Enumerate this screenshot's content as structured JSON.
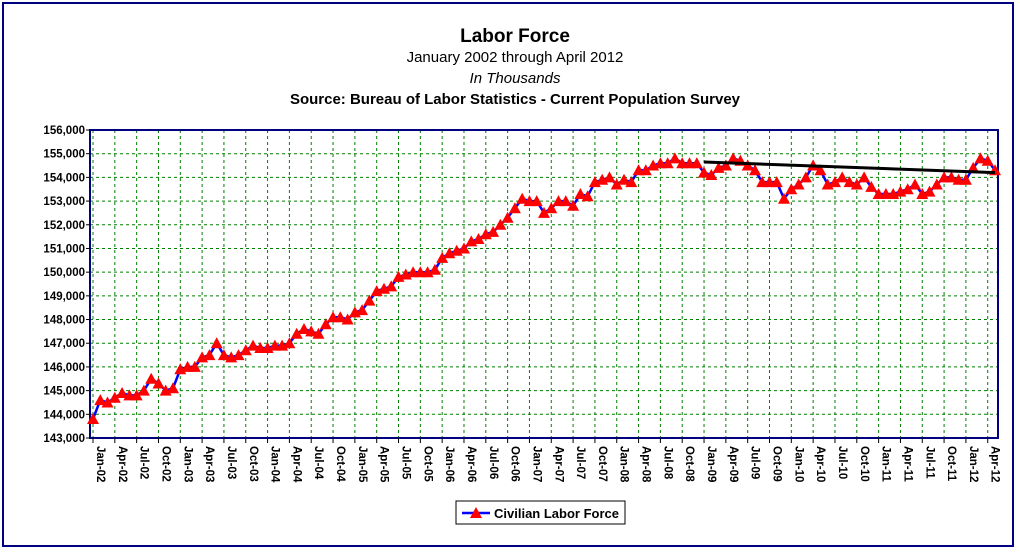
{
  "chart_data": {
    "type": "line",
    "title": "Labor Force",
    "subtitle_lines": [
      "January 2002 through April 2012",
      "In Thousands",
      "Source: Bureau of Labor Statistics - Current Population Survey"
    ],
    "xlabel": "",
    "ylabel": "",
    "ylim": [
      143000,
      156000
    ],
    "yticks": [
      "156,000",
      "155,000",
      "154,000",
      "153,000",
      "152,000",
      "151,000",
      "150,000",
      "149,000",
      "148,000",
      "147,000",
      "146,000",
      "145,000",
      "144,000",
      "143,000"
    ],
    "ytick_values": [
      156000,
      155000,
      154000,
      153000,
      152000,
      151000,
      150000,
      149000,
      148000,
      147000,
      146000,
      145000,
      144000,
      143000
    ],
    "xticks": [
      "Jan-02",
      "Apr-02",
      "Jul-02",
      "Oct-02",
      "Jan-03",
      "Apr-03",
      "Jul-03",
      "Oct-03",
      "Jan-04",
      "Apr-04",
      "Jul-04",
      "Oct-04",
      "Jan-05",
      "Apr-05",
      "Jul-05",
      "Oct-05",
      "Jan-06",
      "Apr-06",
      "Jul-06",
      "Oct-06",
      "Jan-07",
      "Apr-07",
      "Jul-07",
      "Oct-07",
      "Jan-08",
      "Apr-08",
      "Jul-08",
      "Oct-08",
      "Jan-09",
      "Apr-09",
      "Jul-09",
      "Oct-09",
      "Jan-10",
      "Apr-10",
      "Jul-10",
      "Oct-10",
      "Jan-11",
      "Apr-11",
      "Jul-11",
      "Oct-11",
      "Jan-12",
      "Apr-12"
    ],
    "grid": true,
    "legend": {
      "placement": "bottom-center",
      "entries": [
        "Civilian Labor Force"
      ]
    },
    "colors": {
      "series_line": "#0000ff",
      "series_marker": "#ff0000",
      "trend": "#000000",
      "grid": "#008000",
      "plot_border": "#000080"
    },
    "series": [
      {
        "name": "Civilian Labor Force",
        "values": [
          143800,
          144600,
          144500,
          144700,
          144900,
          144800,
          144800,
          145000,
          145500,
          145300,
          145000,
          145100,
          145900,
          146000,
          146000,
          146400,
          146500,
          147000,
          146500,
          146400,
          146500,
          146700,
          146900,
          146800,
          146800,
          146900,
          146900,
          147000,
          147400,
          147600,
          147500,
          147400,
          147800,
          148100,
          148100,
          148000,
          148300,
          148400,
          148800,
          149200,
          149300,
          149400,
          149800,
          149900,
          150000,
          150000,
          150000,
          150100,
          150600,
          150800,
          150900,
          151000,
          151300,
          151400,
          151600,
          151700,
          152000,
          152300,
          152700,
          153100,
          153000,
          153000,
          152500,
          152700,
          153000,
          153000,
          152800,
          153300,
          153200,
          153800,
          153900,
          154000,
          153700,
          153900,
          153800,
          154300,
          154300,
          154500,
          154600,
          154600,
          154800,
          154600,
          154600,
          154600,
          154200,
          154100,
          154400,
          154500,
          154800,
          154700,
          154500,
          154300,
          153800,
          153800,
          153800,
          153100,
          153500,
          153700,
          154000,
          154500,
          154300,
          153700,
          153800,
          154000,
          153800,
          153700,
          154000,
          153600,
          153300,
          153300,
          153300,
          153400,
          153500,
          153700,
          153300,
          153400,
          153700,
          154000,
          154000,
          153900,
          153900,
          154400,
          154800,
          154700,
          154300
        ]
      }
    ],
    "trendline": {
      "x": [
        84,
        124
      ],
      "y": [
        154650,
        154200
      ]
    }
  }
}
